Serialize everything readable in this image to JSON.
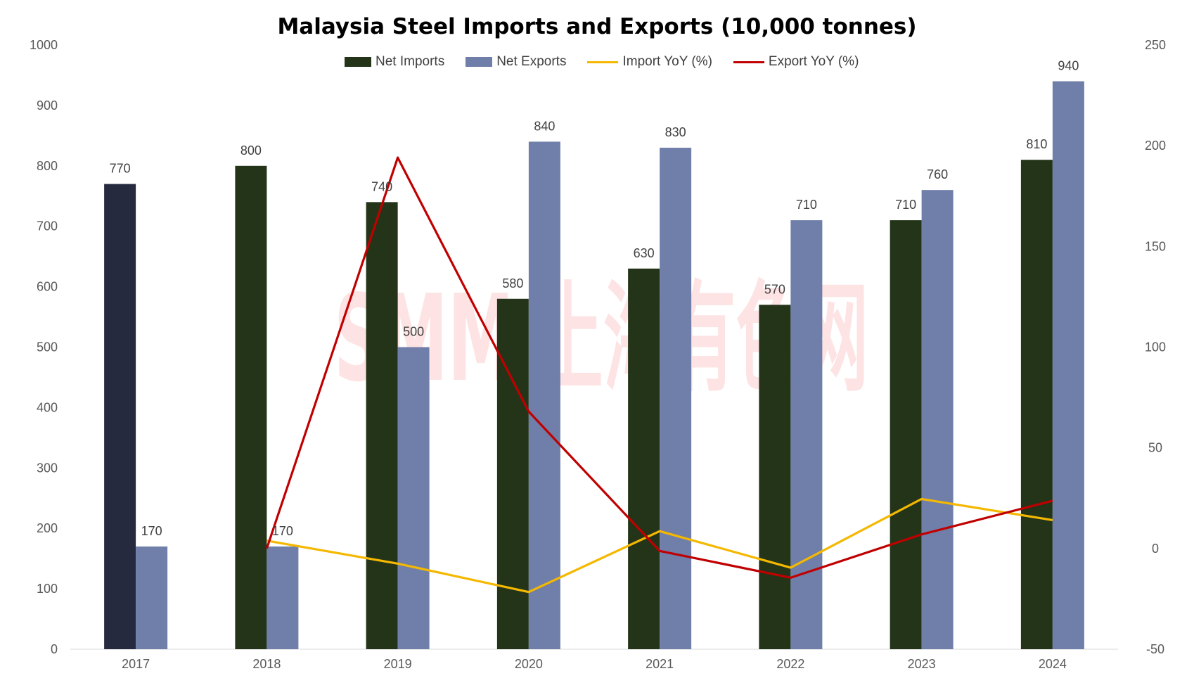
{
  "chart_data": {
    "type": "bar",
    "title": "Malaysia Steel Imports and Exports (10,000 tonnes)",
    "categories": [
      "2017",
      "2018",
      "2019",
      "2020",
      "2021",
      "2022",
      "2023",
      "2024"
    ],
    "series": [
      {
        "name": "Net Imports",
        "kind": "bar",
        "axis": "left",
        "color": "#233418",
        "values": [
          770,
          800,
          740,
          580,
          630,
          570,
          710,
          810
        ],
        "first_bar_color": "#252a3e"
      },
      {
        "name": "Net Exports",
        "kind": "bar",
        "axis": "left",
        "color": "#6f7fa9",
        "values": [
          170,
          170,
          500,
          840,
          830,
          710,
          760,
          940
        ]
      },
      {
        "name": "Import YoY (%)",
        "kind": "line",
        "axis": "right",
        "color": "#f5b800",
        "values": [
          null,
          3.9,
          -7.5,
          -21.6,
          8.6,
          -9.5,
          24.6,
          14.1
        ]
      },
      {
        "name": "Export YoY (%)",
        "kind": "line",
        "axis": "right",
        "color": "#c00000",
        "values": [
          null,
          0,
          194.1,
          68,
          -1.2,
          -14.5,
          7,
          23.7
        ]
      }
    ],
    "y_left": {
      "min": 0,
      "max": 1000,
      "ticks": [
        "0",
        "100",
        "200",
        "300",
        "400",
        "500",
        "600",
        "700",
        "800",
        "900",
        "1000"
      ]
    },
    "y_right": {
      "min": -50,
      "max": 250,
      "ticks": [
        "-50",
        "0",
        "50",
        "100",
        "150",
        "200",
        "250"
      ]
    },
    "grid": false,
    "legend": "top-center",
    "watermark": "SMM 上海有色网"
  }
}
